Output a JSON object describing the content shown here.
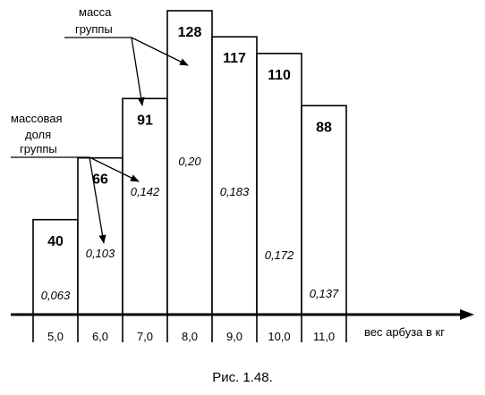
{
  "chart_data": {
    "type": "bar",
    "title": "",
    "xlabel": "вес арбуза в кг",
    "ylabel": "",
    "categories": [
      "5,0",
      "6,0",
      "7,0",
      "8,0",
      "9,0",
      "10,0",
      "11,0"
    ],
    "series": [
      {
        "values": [
          40,
          66,
          91,
          128,
          117,
          110,
          88
        ]
      },
      {
        "values": [
          0.063,
          0.103,
          0.142,
          0.2,
          0.183,
          0.172,
          0.137
        ]
      }
    ],
    "count_labels": [
      "40",
      "66",
      "91",
      "128",
      "117",
      "110",
      "88"
    ],
    "fraction_labels": [
      "0,063",
      "0,103",
      "0,142",
      "0,20",
      "0,183",
      "0,172",
      "0,137"
    ],
    "ylim": [
      0,
      128
    ],
    "grid": false,
    "annotations": {
      "mass_lines": [
        "масса",
        "группы"
      ],
      "share_lines": [
        "массовая",
        "доля",
        "группы"
      ]
    }
  },
  "caption": "Рис. 1.48."
}
